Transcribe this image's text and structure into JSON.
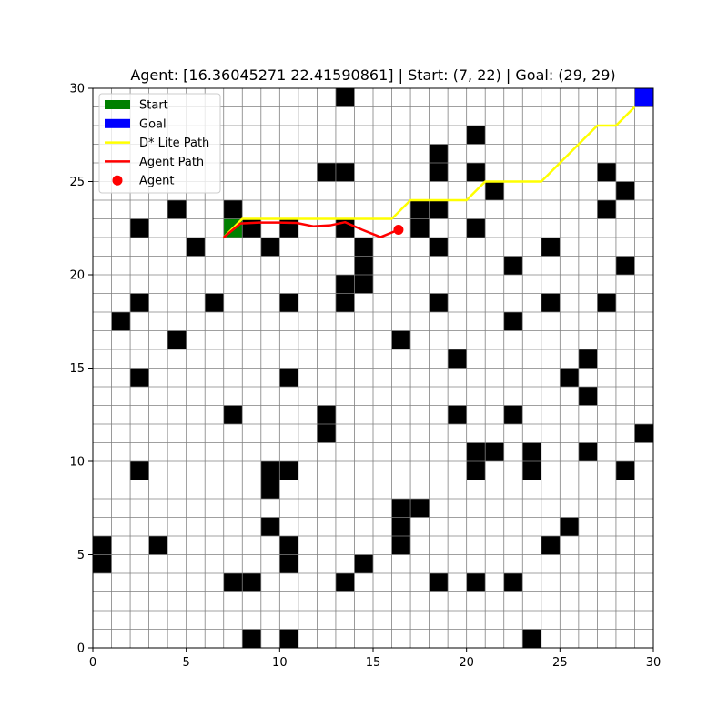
{
  "chart_data": {
    "type": "grid-map",
    "title": "Agent: [16.36045271 22.41590861] | Start: (7, 22) | Goal: (29, 29)",
    "xlim": [
      0,
      30
    ],
    "ylim": [
      0,
      30
    ],
    "x_ticks": [
      0,
      5,
      10,
      15,
      20,
      25,
      30
    ],
    "y_ticks": [
      0,
      5,
      10,
      15,
      20,
      25,
      30
    ],
    "grid": true,
    "legend_position": "upper-left",
    "legend": [
      {
        "label": "Start",
        "kind": "patch",
        "color": "#008000"
      },
      {
        "label": "Goal",
        "kind": "patch",
        "color": "#0000ff"
      },
      {
        "label": "D* Lite Path",
        "kind": "line",
        "color": "#ffff00"
      },
      {
        "label": "Agent Path",
        "kind": "line",
        "color": "#ff0000"
      },
      {
        "label": "Agent",
        "kind": "point",
        "color": "#ff0000"
      }
    ],
    "colors": {
      "obstacle": "#000000",
      "grid_line": "#808080",
      "start": "#008000",
      "goal": "#0000ff",
      "dstar_path": "#ffff00",
      "agent_path": "#ff0000",
      "agent": "#ff0000"
    },
    "start": [
      7,
      22
    ],
    "goal": [
      29,
      29
    ],
    "agent": [
      16.36045271,
      22.41590861
    ],
    "obstacles": [
      [
        13,
        29
      ],
      [
        20,
        27
      ],
      [
        18,
        26
      ],
      [
        12,
        25
      ],
      [
        13,
        25
      ],
      [
        18,
        25
      ],
      [
        20,
        25
      ],
      [
        27,
        25
      ],
      [
        21,
        24
      ],
      [
        28,
        24
      ],
      [
        4,
        23
      ],
      [
        7,
        23
      ],
      [
        17,
        23
      ],
      [
        18,
        23
      ],
      [
        27,
        23
      ],
      [
        2,
        22
      ],
      [
        8,
        22
      ],
      [
        10,
        22
      ],
      [
        13,
        22
      ],
      [
        17,
        22
      ],
      [
        20,
        22
      ],
      [
        5,
        21
      ],
      [
        9,
        21
      ],
      [
        14,
        21
      ],
      [
        18,
        21
      ],
      [
        24,
        21
      ],
      [
        14,
        20
      ],
      [
        22,
        20
      ],
      [
        28,
        20
      ],
      [
        13,
        19
      ],
      [
        14,
        19
      ],
      [
        2,
        18
      ],
      [
        6,
        18
      ],
      [
        10,
        18
      ],
      [
        13,
        18
      ],
      [
        18,
        18
      ],
      [
        24,
        18
      ],
      [
        27,
        18
      ],
      [
        1,
        17
      ],
      [
        22,
        17
      ],
      [
        4,
        16
      ],
      [
        16,
        16
      ],
      [
        19,
        15
      ],
      [
        26,
        15
      ],
      [
        2,
        14
      ],
      [
        10,
        14
      ],
      [
        25,
        14
      ],
      [
        26,
        13
      ],
      [
        7,
        12
      ],
      [
        12,
        12
      ],
      [
        19,
        12
      ],
      [
        22,
        12
      ],
      [
        12,
        11
      ],
      [
        29,
        11
      ],
      [
        20,
        10
      ],
      [
        21,
        10
      ],
      [
        23,
        10
      ],
      [
        26,
        10
      ],
      [
        2,
        9
      ],
      [
        9,
        9
      ],
      [
        10,
        9
      ],
      [
        20,
        9
      ],
      [
        23,
        9
      ],
      [
        28,
        9
      ],
      [
        9,
        8
      ],
      [
        16,
        7
      ],
      [
        17,
        7
      ],
      [
        9,
        6
      ],
      [
        16,
        6
      ],
      [
        25,
        6
      ],
      [
        0,
        5
      ],
      [
        3,
        5
      ],
      [
        10,
        5
      ],
      [
        16,
        5
      ],
      [
        24,
        5
      ],
      [
        0,
        4
      ],
      [
        10,
        4
      ],
      [
        14,
        4
      ],
      [
        7,
        3
      ],
      [
        8,
        3
      ],
      [
        13,
        3
      ],
      [
        18,
        3
      ],
      [
        20,
        3
      ],
      [
        22,
        3
      ],
      [
        8,
        0
      ],
      [
        10,
        0
      ],
      [
        23,
        0
      ]
    ],
    "dstar_path": [
      [
        7,
        22
      ],
      [
        8,
        23
      ],
      [
        9,
        23
      ],
      [
        10,
        23
      ],
      [
        11,
        23
      ],
      [
        12,
        23
      ],
      [
        13,
        23
      ],
      [
        14,
        23
      ],
      [
        15,
        23
      ],
      [
        16,
        23
      ],
      [
        17,
        24
      ],
      [
        18,
        24
      ],
      [
        19,
        24
      ],
      [
        20,
        24
      ],
      [
        21,
        25
      ],
      [
        22,
        25
      ],
      [
        23,
        25
      ],
      [
        24,
        25
      ],
      [
        25,
        26
      ],
      [
        26,
        27
      ],
      [
        27,
        28
      ],
      [
        28,
        28
      ],
      [
        29,
        29
      ]
    ],
    "agent_path": [
      [
        7,
        22
      ],
      [
        7.9,
        22.75
      ],
      [
        8.9,
        22.8
      ],
      [
        9.9,
        22.8
      ],
      [
        10.9,
        22.78
      ],
      [
        11.8,
        22.6
      ],
      [
        12.7,
        22.65
      ],
      [
        13.5,
        22.82
      ],
      [
        14.4,
        22.42
      ],
      [
        15.4,
        22.02
      ],
      [
        16.36045271,
        22.41590861
      ]
    ]
  }
}
